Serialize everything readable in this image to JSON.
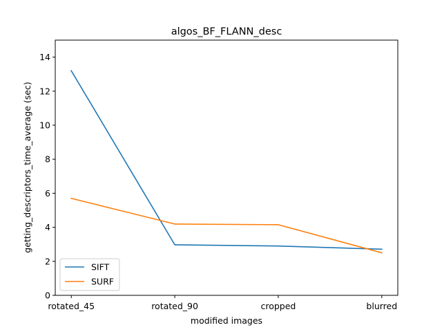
{
  "chart_data": {
    "type": "line",
    "title": "algos_BF_FLANN_desc",
    "xlabel": "modified images",
    "ylabel": "getting_descriptors_time_average (sec)",
    "categories": [
      "rotated_45",
      "rotated_90",
      "cropped",
      "blurred"
    ],
    "ylim": [
      0,
      15
    ],
    "yticks": [
      0,
      2,
      4,
      6,
      8,
      10,
      12,
      14
    ],
    "grid": false,
    "legend_position": "lower-left",
    "series": [
      {
        "name": "SIFT",
        "color": "#1f77b4",
        "values": [
          13.2,
          2.97,
          2.9,
          2.71
        ]
      },
      {
        "name": "SURF",
        "color": "#ff7f0e",
        "values": [
          5.7,
          4.19,
          4.15,
          2.5
        ]
      }
    ]
  }
}
